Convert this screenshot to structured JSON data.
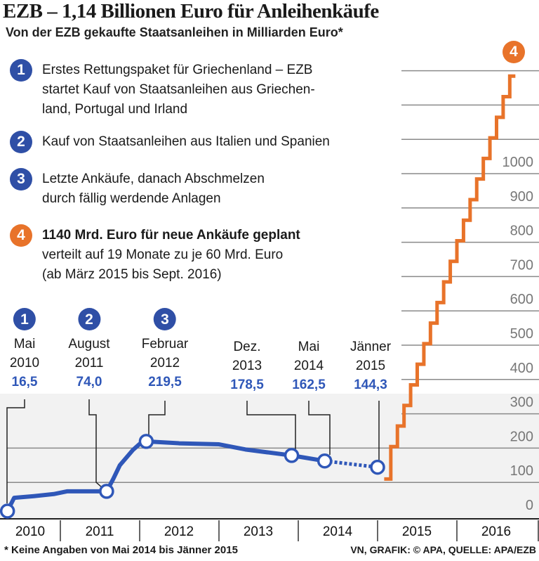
{
  "title": "EZB – 1,14 Billionen Euro für Anleihenkäufe",
  "subtitle": "Von der EZB gekaufte Staatsanleihen in Milliarden Euro*",
  "legend": [
    {
      "num": "1",
      "color": "#2f4fa6",
      "text": [
        "Erstes Rettungspaket für Griechenland – EZB",
        "startet Kauf von Staatsanleihen aus Griechen-",
        "land, Portugal und Irland"
      ]
    },
    {
      "num": "2",
      "color": "#2f4fa6",
      "text": [
        "Kauf von Staatsanleihen aus Italien und Spanien"
      ]
    },
    {
      "num": "3",
      "color": "#2f4fa6",
      "text": [
        "Letzte Ankäufe, danach Abschmelzen",
        "durch fällig werdende Anlagen"
      ]
    },
    {
      "num": "4",
      "color": "#e8732a",
      "bold": "1140 Mrd. Euro für neue Ankäufe geplant",
      "text": [
        "verteilt auf 19 Monate zu je 60 Mrd. Euro",
        "(ab März 2015 bis Sept. 2016)"
      ]
    }
  ],
  "annotations": [
    {
      "num": "1",
      "line1": "Mai",
      "line2": "2010",
      "value": "16,5"
    },
    {
      "num": "2",
      "line1": "August",
      "line2": "2011",
      "value": "74,0"
    },
    {
      "num": "3",
      "line1": "Februar",
      "line2": "2012",
      "value": "219,5"
    },
    {
      "num": "",
      "line1": "Dez.",
      "line2": "2013",
      "value": "178,5"
    },
    {
      "num": "",
      "line1": "Mai",
      "line2": "2014",
      "value": "162,5"
    },
    {
      "num": "",
      "line1": "Jänner",
      "line2": "2015",
      "value": "144,3"
    }
  ],
  "plan_marker": "4",
  "footnote": "* Keine Angaben von Mai 2014 bis Jänner 2015",
  "source": "VN, GRAFIK: © APA, QUELLE: APA/EZB",
  "chart_data": {
    "type": "line",
    "xlabel": "",
    "ylabel": "",
    "x_ticks": [
      "2010",
      "2011",
      "2012",
      "2013",
      "2014",
      "2015",
      "2016"
    ],
    "y_ticks": [
      0,
      100,
      200,
      300,
      400,
      500,
      600,
      700,
      800,
      900,
      1000
    ],
    "ylim": [
      0,
      1300
    ],
    "grid": true,
    "colors": {
      "actual": "#2f57b8",
      "planned": "#e8732a"
    },
    "series": [
      {
        "key": "actual",
        "points": [
          [
            "2010-05",
            16.5
          ],
          [
            "2010-06",
            55
          ],
          [
            "2010-09",
            60
          ],
          [
            "2010-12",
            66
          ],
          [
            "2011-02",
            74
          ],
          [
            "2011-08",
            74
          ],
          [
            "2011-09",
            110
          ],
          [
            "2011-10",
            150
          ],
          [
            "2011-12",
            195
          ],
          [
            "2012-01",
            212
          ],
          [
            "2012-02",
            219.5
          ],
          [
            "2012-07",
            214
          ],
          [
            "2013-01",
            211
          ],
          [
            "2013-05",
            196
          ],
          [
            "2013-12",
            178.5
          ],
          [
            "2014-05",
            162.5
          ]
        ]
      },
      {
        "key": "gap",
        "dotted": true,
        "points": [
          [
            "2014-05",
            162.5
          ],
          [
            "2015-01",
            144.3
          ]
        ]
      },
      {
        "key": "planned",
        "step": true,
        "start": [
          "2015-02",
          110
        ],
        "monthly": 60,
        "months": [
          "2015-03",
          "2015-04",
          "2015-05",
          "2015-06",
          "2015-07",
          "2015-08",
          "2015-09",
          "2015-10",
          "2015-11",
          "2015-12",
          "2016-01",
          "2016-02",
          "2016-03",
          "2016-04",
          "2016-05",
          "2016-06",
          "2016-07",
          "2016-08",
          "2016-09"
        ],
        "base": 144.3
      }
    ],
    "markers": [
      [
        "2010-05",
        16.5
      ],
      [
        "2011-08",
        74
      ],
      [
        "2012-02",
        219.5
      ],
      [
        "2013-12",
        178.5
      ],
      [
        "2014-05",
        162.5
      ],
      [
        "2015-01",
        144.3
      ]
    ]
  }
}
